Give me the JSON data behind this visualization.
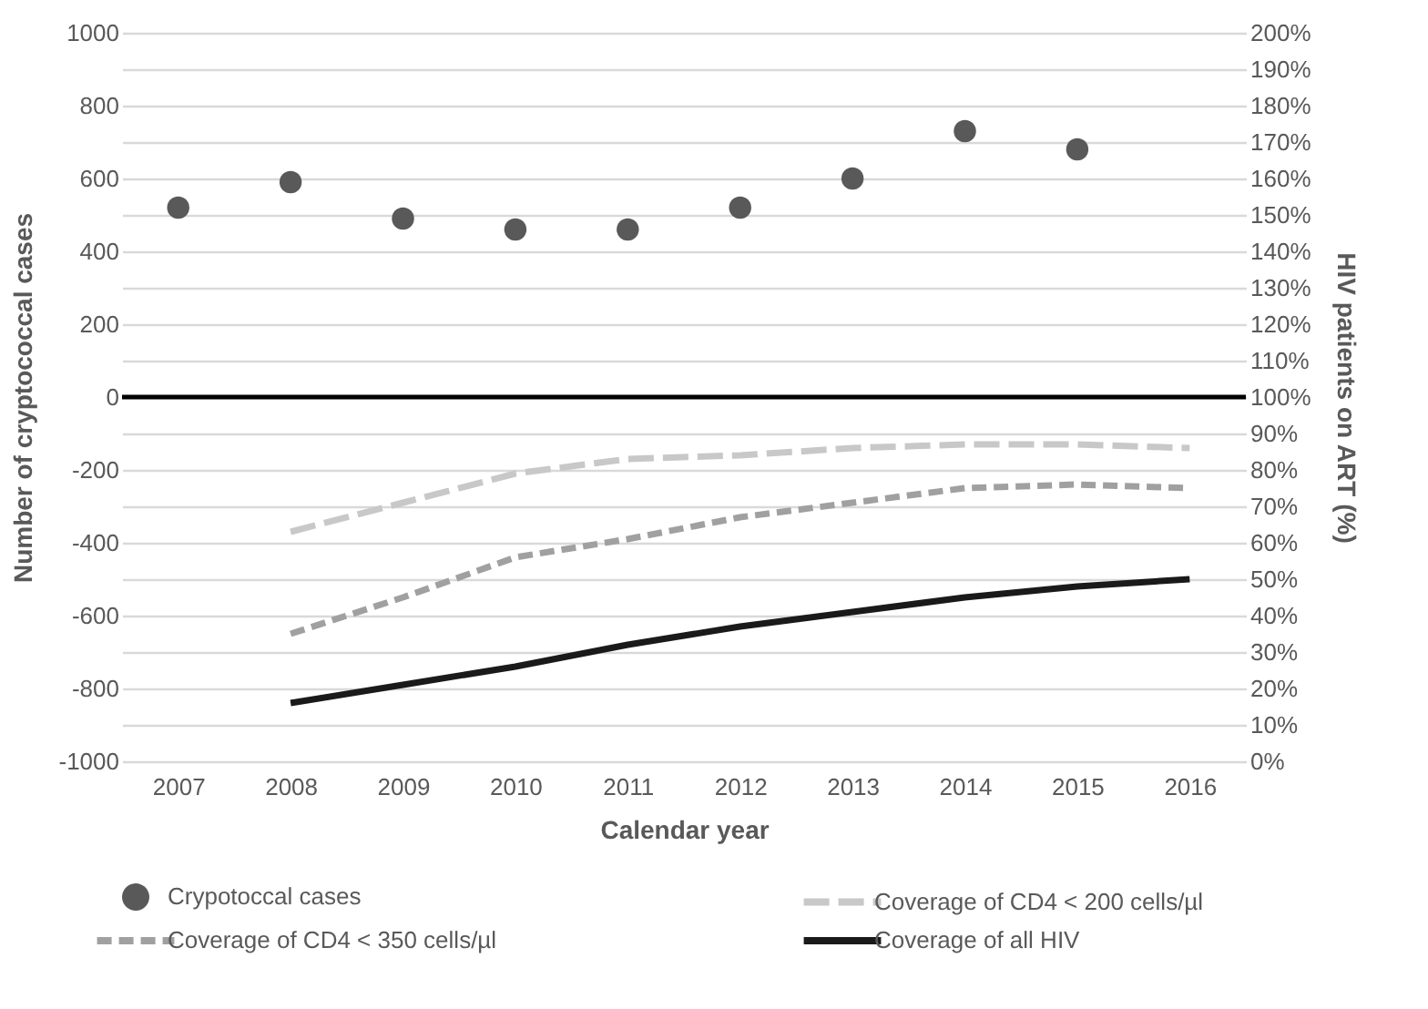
{
  "chart_data": {
    "type": "line",
    "xlabel": "Calendar year",
    "ylabel": "Number of cryptococcal cases",
    "y2label": "HIV patients on ART (%)",
    "categories": [
      "2007",
      "2008",
      "2009",
      "2010",
      "2011",
      "2012",
      "2013",
      "2014",
      "2015",
      "2016"
    ],
    "series": [
      {
        "name": "Crypotoccal cases",
        "type": "scatter",
        "marker": "circle",
        "color": "#595959",
        "values": [
          520,
          590,
          490,
          460,
          460,
          520,
          600,
          730,
          680,
          null
        ]
      },
      {
        "name": "Coverage of CD4 < 200 cells/µl",
        "type": "line",
        "axis": "y2",
        "line_style": "dashed",
        "color": "#c8c8c8",
        "values": [
          null,
          63,
          71,
          79,
          83,
          84,
          86,
          87,
          87,
          86
        ]
      },
      {
        "name": "Coverage of CD4 < 350 cells/µl",
        "type": "line",
        "axis": "y2",
        "line_style": "dashed",
        "color": "#a0a0a0",
        "values": [
          null,
          35,
          45,
          56,
          61,
          67,
          71,
          75,
          76,
          75
        ]
      },
      {
        "name": "Coverage of all HIV",
        "type": "line",
        "axis": "y2",
        "line_style": "solid",
        "color": "#1a1a1a",
        "values": [
          null,
          16,
          21,
          26,
          32,
          37,
          41,
          45,
          48,
          50
        ]
      }
    ],
    "ylim": [
      -1000,
      1000
    ],
    "yticks": [
      -1000,
      -800,
      -600,
      -400,
      -200,
      0,
      200,
      400,
      600,
      800,
      1000
    ],
    "y2lim": [
      0,
      200
    ],
    "y2ticks": [
      {
        "value": 0,
        "label": "0%"
      },
      {
        "value": 10,
        "label": "10%"
      },
      {
        "value": 20,
        "label": "20%"
      },
      {
        "value": 30,
        "label": "30%"
      },
      {
        "value": 40,
        "label": "40%"
      },
      {
        "value": 50,
        "label": "50%"
      },
      {
        "value": 60,
        "label": "60%"
      },
      {
        "value": 70,
        "label": "70%"
      },
      {
        "value": 80,
        "label": "80%"
      },
      {
        "value": 90,
        "label": "90%"
      },
      {
        "value": 100,
        "label": "100%"
      },
      {
        "value": 110,
        "label": "110%"
      },
      {
        "value": 120,
        "label": "120%"
      },
      {
        "value": 130,
        "label": "130%"
      },
      {
        "value": 140,
        "label": "140%"
      },
      {
        "value": 150,
        "label": "150%"
      },
      {
        "value": 160,
        "label": "160%"
      },
      {
        "value": 170,
        "label": "170%"
      },
      {
        "value": 180,
        "label": "180%"
      },
      {
        "value": 190,
        "label": "190%"
      },
      {
        "value": 200,
        "label": "200%"
      }
    ],
    "ref_lines": [
      {
        "axis": "y",
        "value": 0,
        "color": "#000000"
      }
    ],
    "grid": "y",
    "legend": "bottom"
  }
}
